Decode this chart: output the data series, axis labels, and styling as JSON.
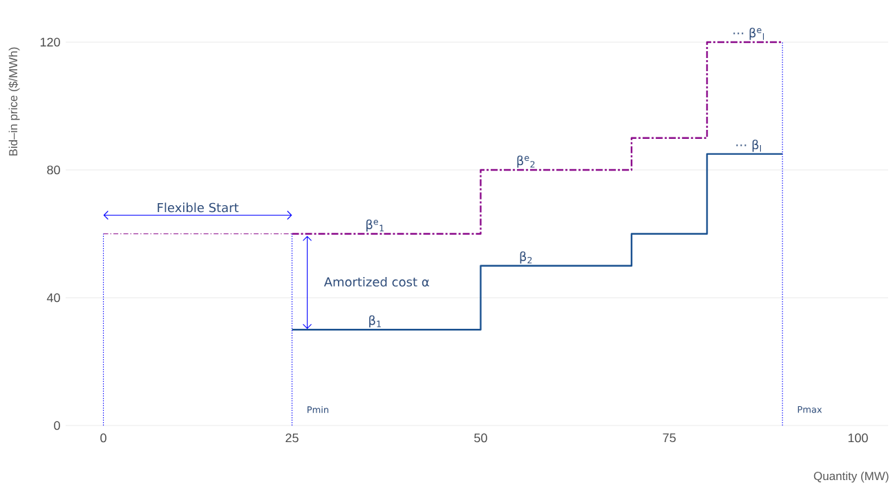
{
  "chart_data": {
    "type": "step",
    "xlabel": "Quantity (MW)",
    "ylabel": "Bid–in price ($/MWh)",
    "xlim": [
      -5,
      104
    ],
    "ylim": [
      0,
      120
    ],
    "xticks": [
      0,
      25,
      50,
      75,
      100
    ],
    "yticks": [
      0,
      40,
      80,
      120
    ],
    "grid": "y",
    "marker": "none",
    "series": [
      {
        "color": "#1a5190",
        "line_style": "solid",
        "x": [
          25,
          50,
          70,
          80,
          90
        ],
        "values": [
          30,
          50,
          60,
          85,
          85
        ]
      },
      {
        "color": "#8b0a8b",
        "line_style": "dashdot",
        "x": [
          25,
          50,
          70,
          80,
          90
        ],
        "values": [
          60,
          80,
          90,
          120,
          120
        ]
      },
      {
        "type": "line",
        "color": "#8b0a8b",
        "line_style": "dashdot",
        "x": [
          0,
          25
        ],
        "values": [
          60,
          60
        ]
      },
      {
        "type": "line",
        "color": "#0000ff",
        "line_style": "dotted",
        "x": [
          0,
          0
        ],
        "values": [
          0,
          60
        ]
      },
      {
        "type": "line",
        "color": "#0000ff",
        "line_style": "dotted",
        "x": [
          25,
          25
        ],
        "values": [
          0,
          60
        ]
      },
      {
        "type": "line",
        "color": "#0000ff",
        "line_style": "dotted",
        "x": [
          90,
          90
        ],
        "values": [
          0,
          120
        ]
      }
    ],
    "annotations": [
      {
        "text": "Flexible  Start",
        "x": 12.5,
        "y": 60
      },
      {
        "text": "β$^{e}$$_{1}$",
        "x": 36,
        "y": 60
      },
      {
        "text": "Amortized cost α",
        "x": 25,
        "y": 45
      },
      {
        "text": "β$_{1}$",
        "x": 36,
        "y": 30
      },
      {
        "text": "β$^{e}$$_{2}$",
        "x": 56,
        "y": 80
      },
      {
        "text": "β$_{2}$",
        "x": 56,
        "y": 50
      },
      {
        "text": "⋯ β$^{e}$$_{l}$",
        "x": 85.5,
        "y": 120
      },
      {
        "text": "⋯ β$_{l}$",
        "x": 85.5,
        "y": 85
      },
      {
        "text": "Pmin",
        "x": 25,
        "y": 5
      },
      {
        "text": "Pmax",
        "x": 90,
        "y": 5
      }
    ]
  }
}
